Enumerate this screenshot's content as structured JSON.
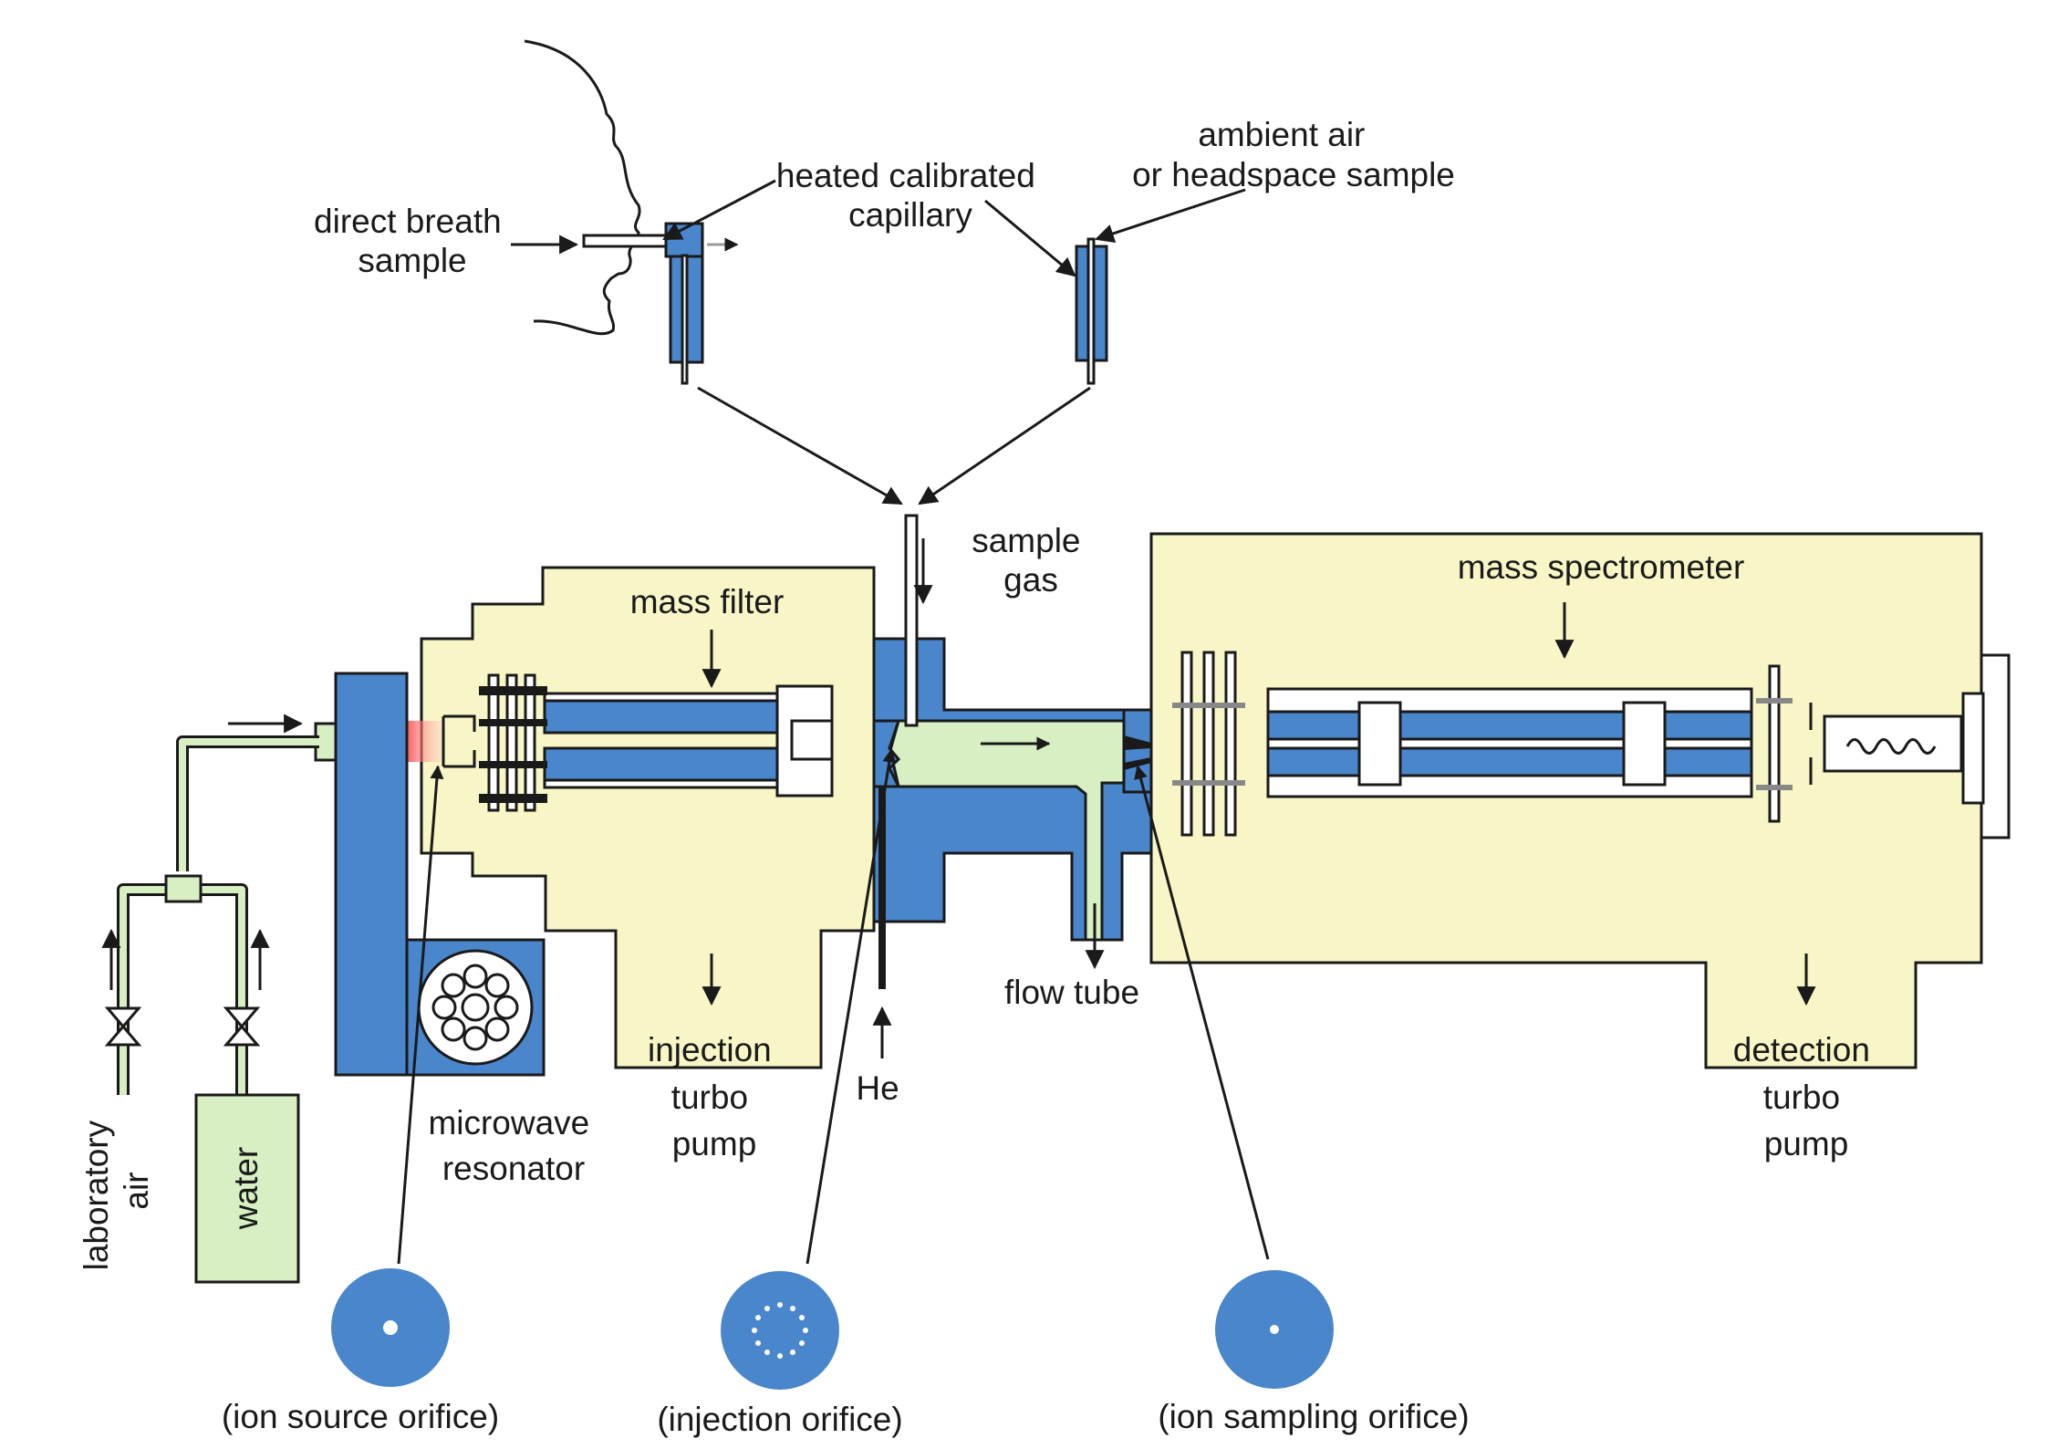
{
  "labels": {
    "direct_breath_sample": [
      "direct breath",
      "sample"
    ],
    "heated_calibrated_capillary": [
      "heated calibrated",
      "capillary"
    ],
    "ambient_air": [
      "ambient air",
      "or headspace sample"
    ],
    "sample_gas": [
      "sample",
      "gas"
    ],
    "mass_filter": "mass filter",
    "mass_spectrometer": "mass spectrometer",
    "flow_tube": "flow tube",
    "he": "He",
    "injection_turbo_pump": [
      "injection",
      "turbo",
      "pump"
    ],
    "detection_turbo_pump": [
      "detection",
      "turbo",
      "pump"
    ],
    "microwave_resonator": [
      "microwave",
      "resonator"
    ],
    "laboratory_air": [
      "laboratory",
      "air"
    ],
    "water": "water",
    "ion_source_orifice": "(ion source orifice)",
    "injection_orifice": "(injection orifice)",
    "ion_sampling_orifice": "(ion sampling orifice)"
  },
  "colors": {
    "chamber": "#f8f6c6",
    "metal": "#4a86cc",
    "gas": "#d8efc4",
    "plasma": "#f07070"
  }
}
